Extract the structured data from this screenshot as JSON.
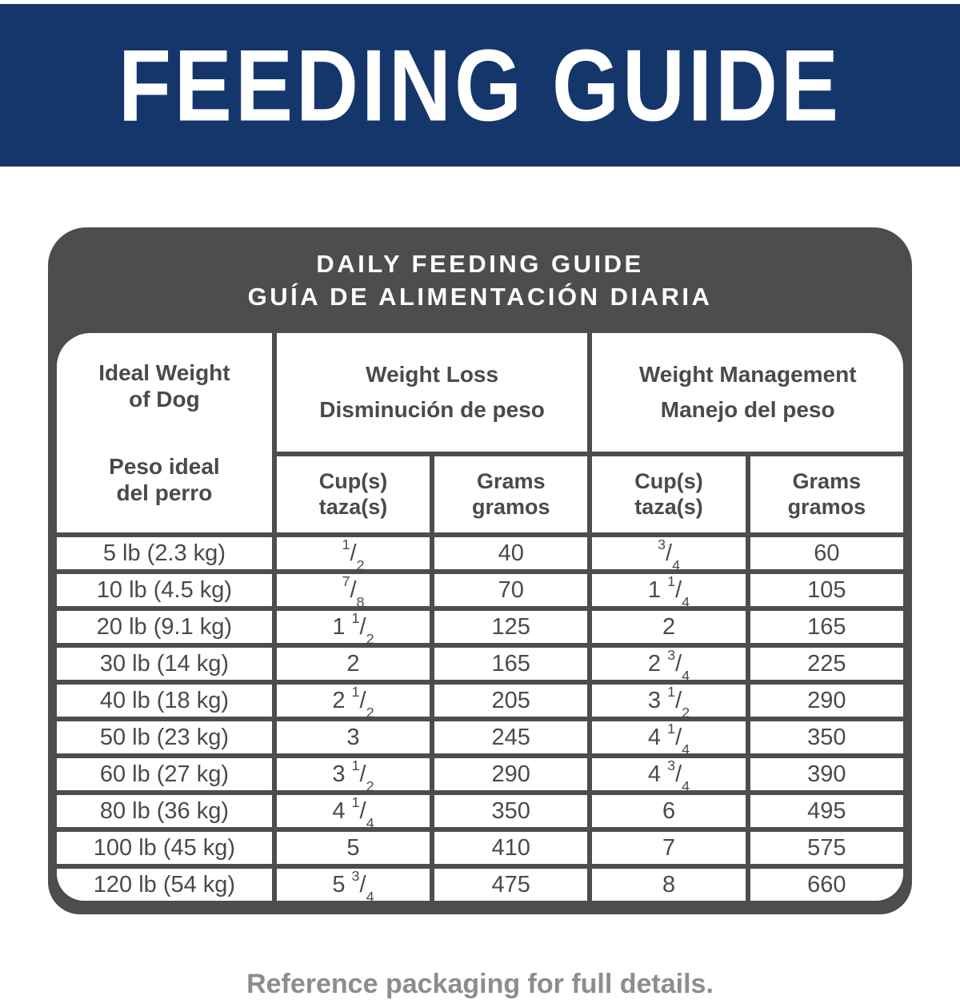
{
  "banner": {
    "title": "FEEDING GUIDE",
    "bg_color": "#14366b",
    "text_color": "#ffffff"
  },
  "card": {
    "title_en": "DAILY FEEDING GUIDE",
    "title_es": "GUÍA DE ALIMENTACIÓN DIARIA",
    "frame_color": "#4d4d50",
    "text_color": "#4a4a4d"
  },
  "table": {
    "header": {
      "ideal_weight_en": "Ideal Weight\nof Dog",
      "ideal_weight_es": "Peso ideal\ndel perro",
      "weight_loss_en": "Weight Loss",
      "weight_loss_es": "Disminución de peso",
      "weight_mgmt_en": "Weight Management",
      "weight_mgmt_es": "Manejo del peso",
      "cups_label": "Cup(s)\ntaza(s)",
      "grams_label": "Grams\ngramos"
    },
    "rows": [
      {
        "weight": "5 lb (2.3 kg)",
        "wl_cups": "1/2",
        "wl_grams": "40",
        "wm_cups": "3/4",
        "wm_grams": "60"
      },
      {
        "weight": "10 lb (4.5 kg)",
        "wl_cups": "7/8",
        "wl_grams": "70",
        "wm_cups": "1 1/4",
        "wm_grams": "105"
      },
      {
        "weight": "20 lb (9.1 kg)",
        "wl_cups": "1 1/2",
        "wl_grams": "125",
        "wm_cups": "2",
        "wm_grams": "165"
      },
      {
        "weight": "30 lb (14 kg)",
        "wl_cups": "2",
        "wl_grams": "165",
        "wm_cups": "2 3/4",
        "wm_grams": "225"
      },
      {
        "weight": "40 lb (18 kg)",
        "wl_cups": "2 1/2",
        "wl_grams": "205",
        "wm_cups": "3 1/2",
        "wm_grams": "290"
      },
      {
        "weight": "50 lb (23 kg)",
        "wl_cups": "3",
        "wl_grams": "245",
        "wm_cups": "4 1/4",
        "wm_grams": "350"
      },
      {
        "weight": "60 lb (27 kg)",
        "wl_cups": "3 1/2",
        "wl_grams": "290",
        "wm_cups": "4 3/4",
        "wm_grams": "390"
      },
      {
        "weight": "80 lb (36 kg)",
        "wl_cups": "4 1/4",
        "wl_grams": "350",
        "wm_cups": "6",
        "wm_grams": "495"
      },
      {
        "weight": "100 lb (45 kg)",
        "wl_cups": "5",
        "wl_grams": "410",
        "wm_cups": "7",
        "wm_grams": "575"
      },
      {
        "weight": "120 lb (54 kg)",
        "wl_cups": "5 3/4",
        "wl_grams": "475",
        "wm_cups": "8",
        "wm_grams": "660"
      }
    ]
  },
  "footer": {
    "note": "Reference packaging for full details."
  },
  "chart_data": {
    "type": "table",
    "title": "DAILY FEEDING GUIDE / GUÍA DE ALIMENTACIÓN DIARIA",
    "columns": [
      "Ideal Weight of Dog",
      "Weight Loss Cup(s)",
      "Weight Loss Grams",
      "Weight Management Cup(s)",
      "Weight Management Grams"
    ],
    "rows": [
      [
        "5 lb (2.3 kg)",
        "1/2",
        40,
        "3/4",
        60
      ],
      [
        "10 lb (4.5 kg)",
        "7/8",
        70,
        "1 1/4",
        105
      ],
      [
        "20 lb (9.1 kg)",
        "1 1/2",
        125,
        "2",
        165
      ],
      [
        "30 lb (14 kg)",
        "2",
        165,
        "2 3/4",
        225
      ],
      [
        "40 lb (18 kg)",
        "2 1/2",
        205,
        "3 1/2",
        290
      ],
      [
        "50 lb (23 kg)",
        "3",
        245,
        "4 1/4",
        350
      ],
      [
        "60 lb (27 kg)",
        "3 1/2",
        290,
        "4 3/4",
        390
      ],
      [
        "80 lb (36 kg)",
        "4 1/4",
        350,
        "6",
        495
      ],
      [
        "100 lb (45 kg)",
        "5",
        410,
        "7",
        575
      ],
      [
        "120 lb (54 kg)",
        "5 3/4",
        475,
        "8",
        660
      ]
    ]
  }
}
